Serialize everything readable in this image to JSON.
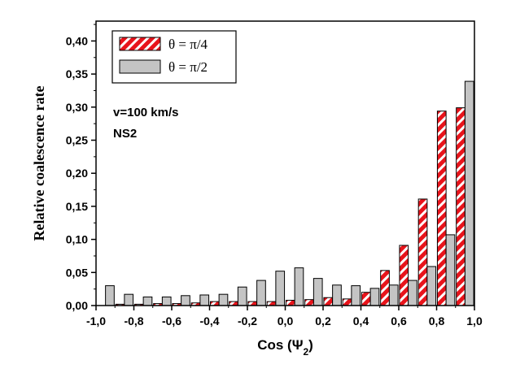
{
  "chart_data": {
    "type": "bar",
    "xlabel": "Cos (Ψ",
    "xlabel_sub": "2",
    "xlabel_suffix": ")",
    "ylabel": "Relative coalescence rate",
    "xlim": [
      -1.0,
      1.0
    ],
    "ylim": [
      0.0,
      0.43
    ],
    "x_ticks": [
      "-1,0",
      "-0,8",
      "-0,6",
      "-0,4",
      "-0,2",
      "0,0",
      "0,2",
      "0,4",
      "0,6",
      "0,8",
      "1,0"
    ],
    "y_ticks": [
      "0,00",
      "0,05",
      "0,10",
      "0,15",
      "0,20",
      "0,25",
      "0,30",
      "0,35",
      "0,40"
    ],
    "annotations": [
      "v=100 km/s",
      "NS2"
    ],
    "legend_position": "top-left",
    "x": [
      -0.95,
      -0.85,
      -0.75,
      -0.65,
      -0.55,
      -0.45,
      -0.35,
      -0.25,
      -0.15,
      -0.05,
      0.05,
      0.15,
      0.25,
      0.35,
      0.45,
      0.55,
      0.65,
      0.75,
      0.85,
      0.95
    ],
    "series": [
      {
        "name": "θ = π/4",
        "color": "#e8141b",
        "pattern": "hatched",
        "values": [
          0.0,
          0.002,
          0.002,
          0.003,
          0.003,
          0.004,
          0.006,
          0.006,
          0.006,
          0.006,
          0.008,
          0.009,
          0.012,
          0.01,
          0.02,
          0.053,
          0.091,
          0.161,
          0.294,
          0.299
        ]
      },
      {
        "name": "θ = π/2",
        "color": "#c4c4c4",
        "pattern": "solid",
        "values": [
          0.03,
          0.017,
          0.013,
          0.013,
          0.015,
          0.016,
          0.017,
          0.028,
          0.038,
          0.052,
          0.057,
          0.041,
          0.031,
          0.03,
          0.026,
          0.031,
          0.038,
          0.059,
          0.107,
          0.339
        ]
      }
    ]
  }
}
